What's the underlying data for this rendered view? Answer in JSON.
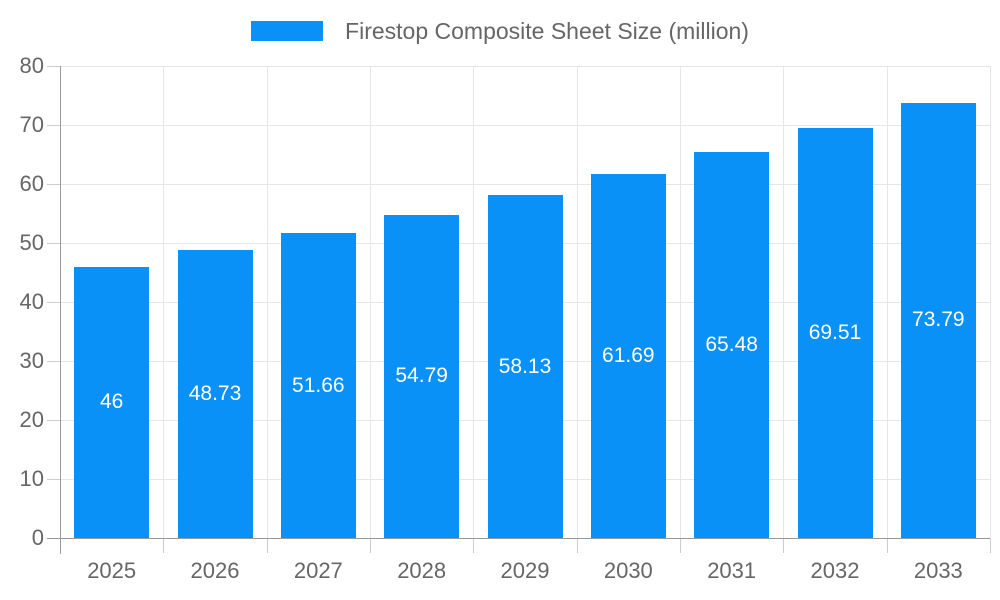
{
  "chart_data": {
    "type": "bar",
    "title": "Firestop Composite Sheet Size (million)",
    "categories": [
      "2025",
      "2026",
      "2027",
      "2028",
      "2029",
      "2030",
      "2031",
      "2032",
      "2033"
    ],
    "values": [
      46,
      48.73,
      51.66,
      54.79,
      58.13,
      61.69,
      65.48,
      69.51,
      73.79
    ],
    "value_labels": [
      "46",
      "48.73",
      "51.66",
      "54.79",
      "58.13",
      "61.69",
      "65.48",
      "69.51",
      "73.79"
    ],
    "series_name": "Firestop Composite Sheet Size (million)",
    "xlabel": "",
    "ylabel": "",
    "ylim": [
      0,
      80
    ],
    "yticks": [
      0,
      10,
      20,
      30,
      40,
      50,
      60,
      70,
      80
    ],
    "ytick_labels": [
      "0",
      "10",
      "20",
      "30",
      "40",
      "50",
      "60",
      "70",
      "80"
    ],
    "grid": true,
    "legend_position": "top-center",
    "colors": {
      "bar": "#0a91f8",
      "value_label": "#ffffff",
      "axis_label": "#666666",
      "title": "#666666",
      "gridline": "#e6e6e6",
      "tick": "#cccccc",
      "axis_line": "#999999",
      "background": "#ffffff"
    }
  }
}
